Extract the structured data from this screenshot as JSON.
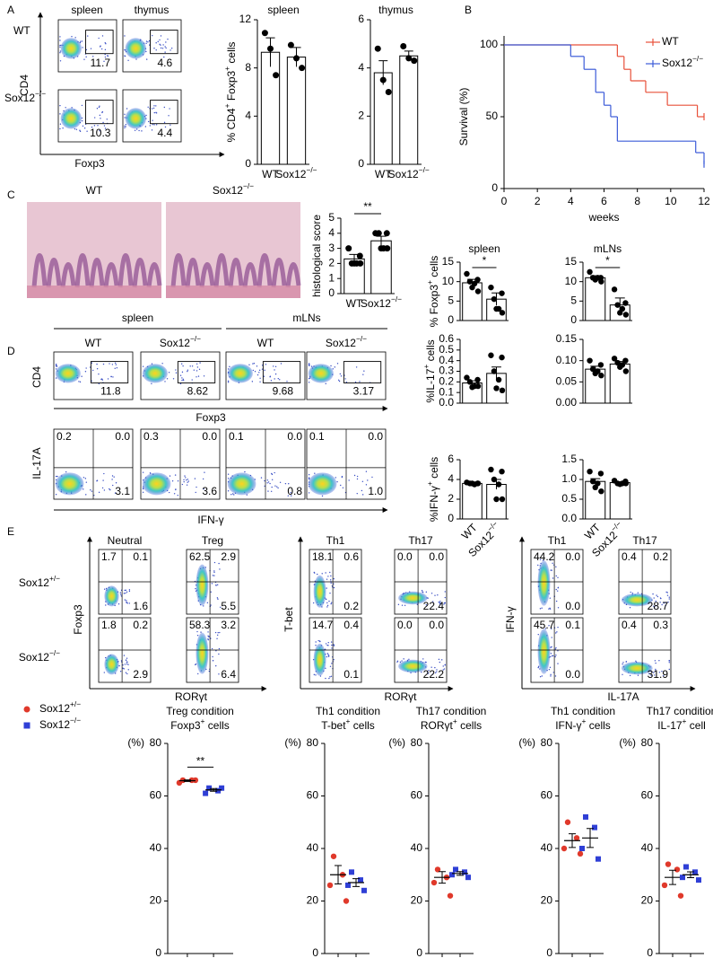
{
  "panel_labels": [
    "A",
    "B",
    "C",
    "D",
    "E"
  ],
  "flow_A": {
    "columns": [
      "spleen",
      "thymus"
    ],
    "rows": [
      "WT",
      "Sox12−/−"
    ],
    "y_axis": "CD4",
    "x_axis": "Foxp3",
    "gates": [
      [
        "11.7",
        "4.6"
      ],
      [
        "10.3",
        "4.4"
      ]
    ]
  },
  "histology": {
    "labels": [
      "WT",
      "Sox12−/−"
    ]
  },
  "flow_D": {
    "groups": [
      "spleen",
      "mLNs"
    ],
    "columns": [
      "WT",
      "Sox12−/−",
      "WT",
      "Sox12−/−"
    ],
    "row1": {
      "y_axis": "CD4",
      "x_axis": "Foxp3",
      "gates": [
        "11.8",
        "8.62",
        "9.68",
        "3.17"
      ]
    },
    "row2": {
      "y_axis": "IL-17A",
      "x_axis": "IFN-γ",
      "quadrants": [
        [
          "0.2",
          "0.0",
          "3.1"
        ],
        [
          "0.3",
          "0.0",
          "3.6"
        ],
        [
          "0.1",
          "0.0",
          "0.8"
        ],
        [
          "0.1",
          "0.0",
          "1.0"
        ]
      ]
    }
  },
  "flow_E": {
    "rows": [
      "Sox12+/−",
      "Sox12−/−"
    ],
    "row_colors": [
      "#d9402a",
      "#4a8fd0"
    ],
    "groups": [
      {
        "y_axis": "Foxp3",
        "x_axis": "RORγt",
        "columns": [
          "Neutral",
          "Treg"
        ],
        "quadrants": [
          [
            [
              "1.7",
              "0.1",
              "1.6"
            ],
            [
              "62.5",
              "2.9",
              "5.5"
            ]
          ],
          [
            [
              "1.8",
              "0.2",
              "2.9"
            ],
            [
              "58.3",
              "3.2",
              "6.4"
            ]
          ]
        ]
      },
      {
        "y_axis": "T-bet",
        "x_axis": "RORγt",
        "columns": [
          "Th1",
          "Th17"
        ],
        "quadrants": [
          [
            [
              "18.1",
              "0.6",
              "0.2"
            ],
            [
              "0.0",
              "0.0",
              "22.4"
            ]
          ],
          [
            [
              "14.7",
              "0.4",
              "0.1"
            ],
            [
              "0.0",
              "0.0",
              "22.2"
            ]
          ]
        ]
      },
      {
        "y_axis": "IFN-γ",
        "x_axis": "IL-17A",
        "columns": [
          "Th1",
          "Th17"
        ],
        "quadrants": [
          [
            [
              "44.2",
              "0.0",
              "0.0"
            ],
            [
              "0.4",
              "0.2",
              "28.7"
            ]
          ],
          [
            [
              "45.7",
              "0.1",
              "0.0"
            ],
            [
              "0.4",
              "0.3",
              "31.9"
            ]
          ]
        ]
      }
    ]
  },
  "chart_data": [
    {
      "type": "bar",
      "title": "spleen",
      "y_label": "% CD4+ Foxp3+ cells",
      "categories": [
        "WT",
        "Sox12−/−"
      ],
      "values": [
        9.3,
        8.9
      ],
      "errors": [
        1.2,
        0.8
      ],
      "points": [
        [
          10.9,
          9.6,
          7.4
        ],
        [
          9.9,
          8.8,
          8.0
        ]
      ],
      "ylim": [
        0,
        12
      ],
      "yticks": [
        0,
        4,
        8,
        12
      ]
    },
    {
      "type": "bar",
      "title": "thymus",
      "categories": [
        "WT",
        "Sox12−/−"
      ],
      "values": [
        3.8,
        4.5
      ],
      "errors": [
        0.5,
        0.2
      ],
      "points": [
        [
          4.8,
          3.5,
          3.0
        ],
        [
          4.9,
          4.4,
          4.3
        ]
      ],
      "ylim": [
        0,
        6
      ],
      "yticks": [
        0,
        2,
        4,
        6
      ]
    },
    {
      "type": "line",
      "step": true,
      "x_label": "weeks",
      "y_label": "Survival (%)",
      "legend": "top-right",
      "xlim": [
        0,
        12
      ],
      "xticks": [
        0,
        2,
        4,
        6,
        8,
        10,
        12
      ],
      "ylim": [
        0,
        100
      ],
      "yticks": [
        0,
        50,
        100
      ],
      "series": [
        {
          "name": "WT",
          "color": "#e8503a",
          "x": [
            0,
            6.8,
            7.2,
            7.6,
            8.5,
            9.8,
            11.6,
            12
          ],
          "values": [
            100,
            92,
            83,
            75,
            67,
            58,
            50,
            50
          ]
        },
        {
          "name": "Sox12−/−",
          "color": "#3c5bd8",
          "x": [
            0,
            4,
            4.8,
            5.5,
            6,
            6.4,
            6.8,
            11.5,
            12
          ],
          "values": [
            100,
            92,
            83,
            67,
            58,
            50,
            33,
            25,
            17
          ]
        }
      ]
    },
    {
      "type": "bar",
      "y_label": "histological score",
      "categories": [
        "WT",
        "Sox12−/−"
      ],
      "significance": "**",
      "values": [
        2.3,
        3.5
      ],
      "errors": [
        0.3,
        0.3
      ],
      "points": [
        [
          3,
          2.5,
          2,
          2,
          2,
          2
        ],
        [
          4,
          4,
          4,
          3,
          3,
          3
        ]
      ],
      "ylim": [
        0,
        5
      ],
      "yticks": [
        0,
        1,
        2,
        3,
        4,
        5
      ]
    },
    {
      "type": "bar",
      "title": "spleen",
      "y_label": "% Foxp3+ cells",
      "categories": [
        null,
        null
      ],
      "significance": "*",
      "values": [
        9.7,
        5.5
      ],
      "errors": [
        0.9,
        1.6
      ],
      "points": [
        [
          12,
          10.5,
          10,
          9.5,
          8.5,
          7.5
        ],
        [
          8.5,
          7,
          5.5,
          3,
          3,
          2
        ]
      ],
      "ylim": [
        0,
        15
      ],
      "yticks": [
        0,
        5,
        10,
        15
      ]
    },
    {
      "type": "bar",
      "title": "mLNs",
      "categories": [
        null,
        null
      ],
      "significance": "*",
      "values": [
        11,
        4
      ],
      "errors": [
        0.5,
        1.8
      ],
      "points": [
        [
          12.5,
          11,
          11,
          11,
          10.5,
          10
        ],
        [
          8,
          4.5,
          4,
          3,
          2,
          1.5
        ]
      ],
      "ylim": [
        0,
        15
      ],
      "yticks": [
        0,
        5,
        10,
        15
      ]
    },
    {
      "type": "bar",
      "y_label": "%IL-17+ cells",
      "categories": [
        null,
        null
      ],
      "values": [
        0.19,
        0.28
      ],
      "errors": [
        0.02,
        0.06
      ],
      "points": [
        [
          0.24,
          0.22,
          0.2,
          0.16,
          0.15,
          0.16
        ],
        [
          0.45,
          0.43,
          0.3,
          0.22,
          0.14,
          0.12
        ]
      ],
      "ylim": [
        0,
        0.6
      ],
      "yticks": [
        {
          "value": 0,
          "label": "0.0"
        },
        0.1,
        0.2,
        0.3,
        0.4,
        0.5,
        0.6
      ]
    },
    {
      "type": "bar",
      "categories": [
        null,
        null
      ],
      "values": [
        0.08,
        0.092
      ],
      "errors": [
        0.007,
        0.006
      ],
      "points": [
        [
          0.1,
          0.09,
          0.08,
          0.075,
          0.07,
          0.065
        ],
        [
          0.105,
          0.1,
          0.095,
          0.09,
          0.085,
          0.075
        ]
      ],
      "ylim": [
        0,
        0.15
      ],
      "yticks": [
        {
          "value": 0,
          "label": "0.00"
        },
        0.05,
        {
          "value": 0.1,
          "label": "0.10"
        },
        0.15
      ]
    },
    {
      "type": "bar",
      "y_label": "%IFN-γ+ cells",
      "categories": [
        "WT",
        "Sox12−/−"
      ],
      "values": [
        3.6,
        3.5
      ],
      "errors": [
        0.05,
        0.5
      ],
      "points": [
        [
          3.7,
          3.6,
          3.6,
          3.5,
          3.6,
          3.6
        ],
        [
          5,
          4.8,
          4,
          3.5,
          2,
          2
        ]
      ],
      "ylim": [
        0,
        6
      ],
      "yticks": [
        0,
        2,
        4,
        6
      ]
    },
    {
      "type": "bar",
      "categories": [
        "WT",
        "Sox12−/−"
      ],
      "values": [
        0.95,
        0.92
      ],
      "errors": [
        0.07,
        0.02
      ],
      "points": [
        [
          1.2,
          1.15,
          0.95,
          0.9,
          0.8,
          0.7
        ],
        [
          0.97,
          0.95,
          0.9,
          0.9,
          0.88,
          0.9
        ]
      ],
      "ylim": [
        0,
        1.5
      ],
      "yticks": [
        {
          "value": 0,
          "label": "0.0"
        },
        0.5,
        {
          "value": 1,
          "label": "1.0"
        },
        1.5
      ]
    },
    {
      "type": "dot",
      "title": [
        "Treg condition",
        "Foxp3+ cells"
      ],
      "y_label": "(%)",
      "significance": "**",
      "ylim": [
        0,
        80
      ],
      "yticks": [
        0,
        20,
        40,
        60,
        80
      ],
      "series": [
        {
          "name": "Sox12+/−",
          "color": "#e0392b",
          "marker": "circle",
          "values": [
            66,
            66,
            65,
            66
          ],
          "mean": 65.8,
          "error": 0.3
        },
        {
          "name": "Sox12−/−",
          "color": "#2f3fd6",
          "marker": "square",
          "values": [
            63,
            62,
            61,
            63
          ],
          "mean": 62.3,
          "error": 0.5
        }
      ]
    },
    {
      "type": "dot",
      "title": [
        "Th1 condition",
        "T-bet+ cells"
      ],
      "y_label": "(%)",
      "ylim": [
        0,
        80
      ],
      "yticks": [
        0,
        20,
        40,
        60,
        80
      ],
      "series": [
        {
          "color": "#e0392b",
          "marker": "circle",
          "values": [
            37,
            30,
            26,
            20
          ],
          "mean": 30,
          "error": 3.5
        },
        {
          "color": "#2f3fd6",
          "marker": "square",
          "values": [
            31,
            28,
            26,
            24
          ],
          "mean": 27,
          "error": 1.5
        }
      ]
    },
    {
      "type": "dot",
      "title": [
        "Th17 condition",
        "RORγt+ cells"
      ],
      "y_label": "(%)",
      "ylim": [
        0,
        80
      ],
      "yticks": [
        0,
        20,
        40,
        60,
        80
      ],
      "series": [
        {
          "color": "#e0392b",
          "marker": "circle",
          "values": [
            32,
            29,
            27,
            22
          ],
          "mean": 29,
          "error": 2.2
        },
        {
          "color": "#2f3fd6",
          "marker": "square",
          "values": [
            32,
            31,
            30,
            29
          ],
          "mean": 30.5,
          "error": 0.7
        }
      ]
    },
    {
      "type": "dot",
      "title": [
        "Th1 condition",
        "IFN-γ+ cells"
      ],
      "y_label": "(%)",
      "ylim": [
        0,
        80
      ],
      "yticks": [
        0,
        20,
        40,
        60,
        80
      ],
      "series": [
        {
          "color": "#e0392b",
          "marker": "circle",
          "values": [
            50,
            44,
            40,
            38
          ],
          "mean": 43,
          "error": 2.6
        },
        {
          "color": "#2f3fd6",
          "marker": "square",
          "values": [
            52,
            48,
            40,
            36
          ],
          "mean": 44,
          "error": 3.6
        }
      ]
    },
    {
      "type": "dot",
      "title": [
        "Th17 condition",
        "IL-17+ cell"
      ],
      "y_label": "(%)",
      "ylim": [
        0,
        80
      ],
      "yticks": [
        0,
        20,
        40,
        60,
        80
      ],
      "series": [
        {
          "color": "#e0392b",
          "marker": "circle",
          "values": [
            34,
            32,
            26,
            22
          ],
          "mean": 29,
          "error": 2.7
        },
        {
          "color": "#2f3fd6",
          "marker": "square",
          "values": [
            33,
            31,
            29,
            28
          ],
          "mean": 30,
          "error": 1.1
        }
      ]
    }
  ]
}
